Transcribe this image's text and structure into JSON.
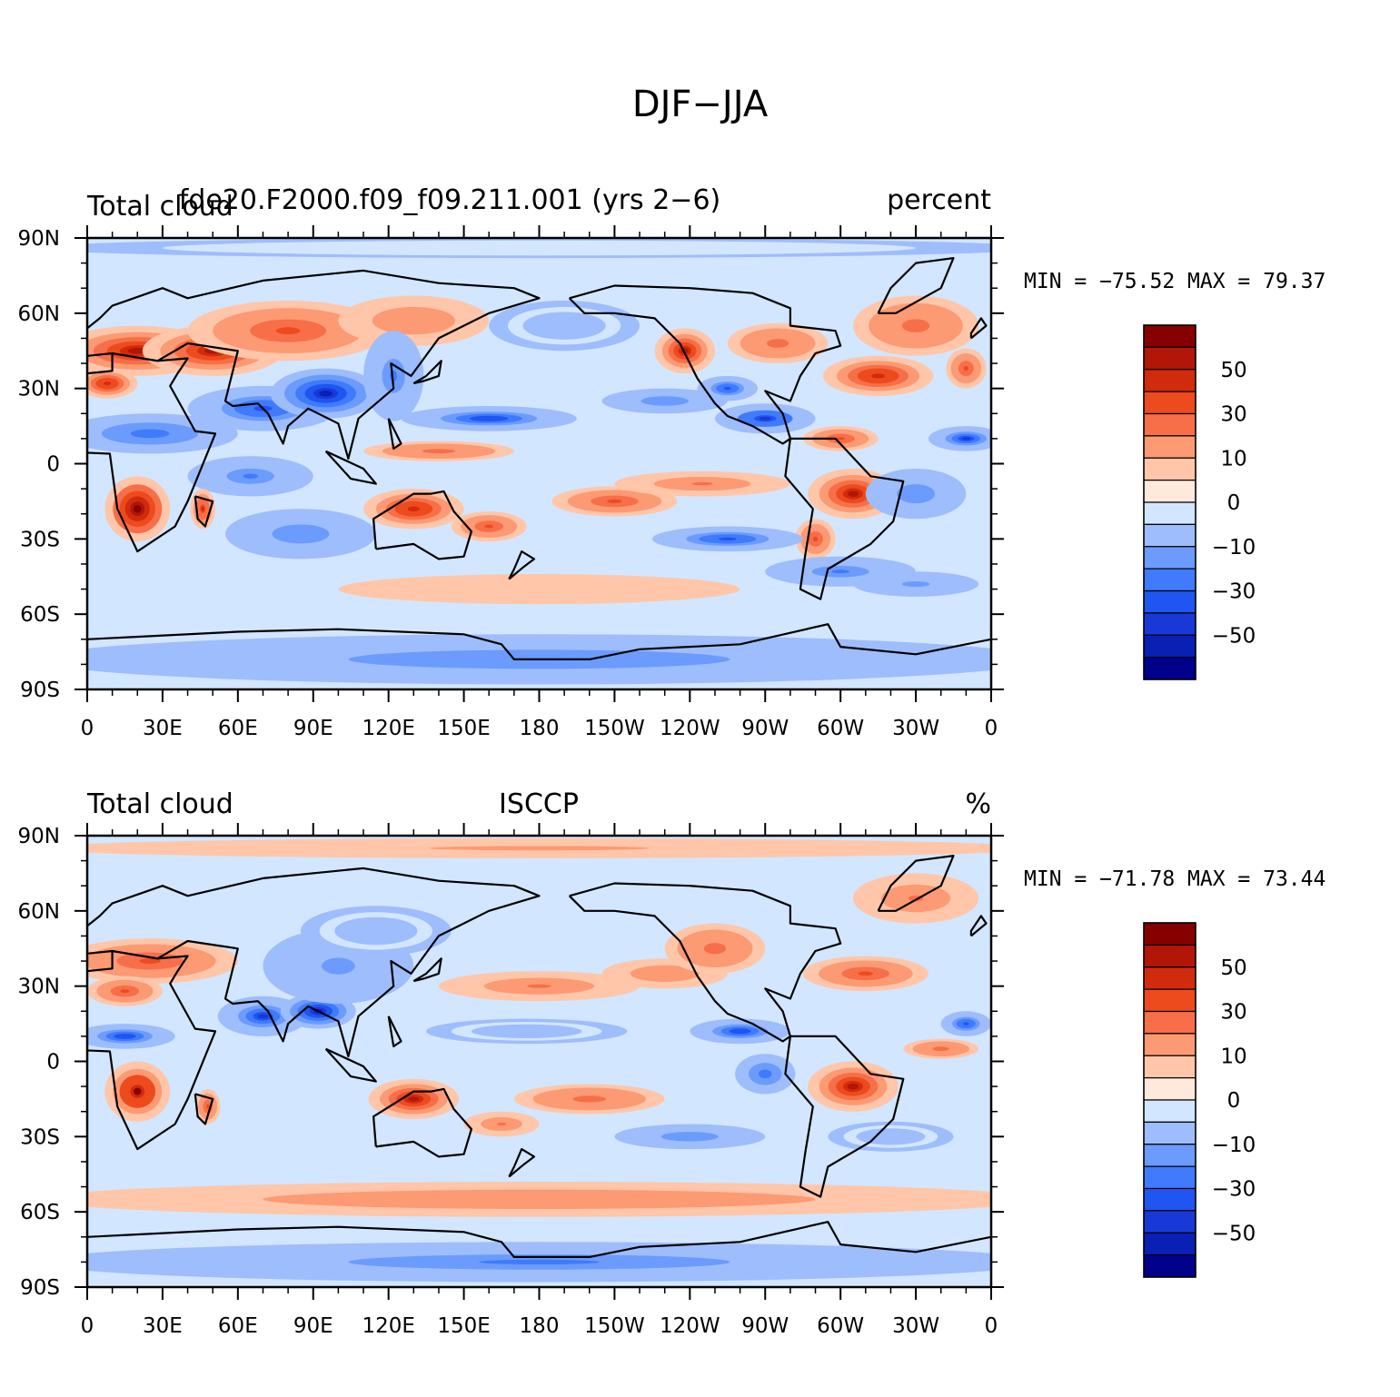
{
  "figure": {
    "title": "DJF−JJA"
  },
  "colors": {
    "levels": [
      "#00008b",
      "#0a1fb4",
      "#1839d8",
      "#1f55f0",
      "#3f7bfc",
      "#6b9bfc",
      "#9ebdfc",
      "#d2e6ff",
      "#ffe9dc",
      "#ffc6a9",
      "#fc9a74",
      "#f76f48",
      "#ed4b1e",
      "#d12b0d",
      "#b21606",
      "#870000"
    ],
    "coast": "#000000"
  },
  "chart_data": [
    {
      "type": "heatmap",
      "title_left": "Total cloud",
      "title_center": "fde20.F2000.f09_f09.211.001 (yrs 2−6)",
      "title_right": "percent",
      "stats": "MIN = −75.52 MAX =  79.37",
      "xticks": [
        "0",
        "30E",
        "60E",
        "90E",
        "120E",
        "150E",
        "180",
        "150W",
        "120W",
        "90W",
        "60W",
        "30W",
        "0"
      ],
      "yticks": [
        "90N",
        "60N",
        "30N",
        "0",
        "30S",
        "60S",
        "90S"
      ],
      "colorbar_labels": [
        "50",
        "30",
        "10",
        "0",
        "−10",
        "−30",
        "−50"
      ],
      "xlim": [
        0,
        360
      ],
      "ylim": [
        -90,
        90
      ],
      "blobs": [
        {
          "lon": 20,
          "lat": 45,
          "rx": 32,
          "ry": 10,
          "v": 55
        },
        {
          "lon": 50,
          "lat": 45,
          "rx": 28,
          "ry": 10,
          "v": 50
        },
        {
          "lon": 80,
          "lat": 53,
          "rx": 40,
          "ry": 12,
          "v": 30
        },
        {
          "lon": 130,
          "lat": 57,
          "rx": 30,
          "ry": 10,
          "v": 18
        },
        {
          "lon": 8,
          "lat": 32,
          "rx": 12,
          "ry": 6,
          "v": 45
        },
        {
          "lon": 25,
          "lat": 12,
          "rx": 35,
          "ry": 8,
          "v": -40
        },
        {
          "lon": 70,
          "lat": 22,
          "rx": 30,
          "ry": 9,
          "v": -45
        },
        {
          "lon": 95,
          "lat": 28,
          "rx": 22,
          "ry": 10,
          "v": -65
        },
        {
          "lon": 122,
          "lat": 35,
          "rx": 12,
          "ry": 18,
          "v": -35
        },
        {
          "lon": 65,
          "lat": -5,
          "rx": 25,
          "ry": 8,
          "v": -35
        },
        {
          "lon": 85,
          "lat": -28,
          "rx": 30,
          "ry": 10,
          "v": -30
        },
        {
          "lon": 20,
          "lat": -18,
          "rx": 13,
          "ry": 13,
          "v": 65
        },
        {
          "lon": 46,
          "lat": -18,
          "rx": 5,
          "ry": 8,
          "v": 40
        },
        {
          "lon": 130,
          "lat": -18,
          "rx": 20,
          "ry": 8,
          "v": 45
        },
        {
          "lon": 160,
          "lat": -25,
          "rx": 15,
          "ry": 6,
          "v": 30
        },
        {
          "lon": 140,
          "lat": 5,
          "rx": 30,
          "ry": 4,
          "v": 25
        },
        {
          "lon": 210,
          "lat": -15,
          "rx": 25,
          "ry": 6,
          "v": 35
        },
        {
          "lon": 245,
          "lat": -8,
          "rx": 35,
          "ry": 5,
          "v": 20
        },
        {
          "lon": 160,
          "lat": 18,
          "rx": 35,
          "ry": 5,
          "v": -50
        },
        {
          "lon": 230,
          "lat": 25,
          "rx": 25,
          "ry": 5,
          "v": -30
        },
        {
          "lon": 270,
          "lat": 18,
          "rx": 20,
          "ry": 6,
          "v": -60
        },
        {
          "lon": 255,
          "lat": 30,
          "rx": 12,
          "ry": 5,
          "v": -45
        },
        {
          "lon": 238,
          "lat": 45,
          "rx": 12,
          "ry": 9,
          "v": 55
        },
        {
          "lon": 275,
          "lat": 48,
          "rx": 20,
          "ry": 8,
          "v": 25
        },
        {
          "lon": 315,
          "lat": 35,
          "rx": 22,
          "ry": 8,
          "v": 45
        },
        {
          "lon": 300,
          "lat": 10,
          "rx": 15,
          "ry": 5,
          "v": 35
        },
        {
          "lon": 305,
          "lat": -12,
          "rx": 18,
          "ry": 10,
          "v": 55
        },
        {
          "lon": 290,
          "lat": -30,
          "rx": 8,
          "ry": 8,
          "v": 30
        },
        {
          "lon": 350,
          "lat": 10,
          "rx": 15,
          "ry": 5,
          "v": -55
        },
        {
          "lon": 330,
          "lat": -12,
          "rx": 20,
          "ry": 10,
          "v": -30
        },
        {
          "lon": 255,
          "lat": -30,
          "rx": 30,
          "ry": 5,
          "v": -45
        },
        {
          "lon": 300,
          "lat": -43,
          "rx": 30,
          "ry": 6,
          "v": -35
        },
        {
          "lon": 330,
          "lat": -48,
          "rx": 25,
          "ry": 5,
          "v": -25
        },
        {
          "lon": 330,
          "lat": 55,
          "rx": 25,
          "ry": 12,
          "v": 25
        },
        {
          "lon": 350,
          "lat": 38,
          "rx": 8,
          "ry": 8,
          "v": 35
        },
        {
          "lon": 190,
          "lat": 55,
          "rx": 30,
          "ry": 10,
          "v": -20
        },
        {
          "lon": 180,
          "lat": -50,
          "rx": 80,
          "ry": 6,
          "v": 8
        },
        {
          "lon": 180,
          "lat": -78,
          "rx": 200,
          "ry": 10,
          "v": -30
        },
        {
          "lon": 180,
          "lat": 86,
          "rx": 200,
          "ry": 4,
          "v": -5
        }
      ]
    },
    {
      "type": "heatmap",
      "title_left": "Total cloud",
      "title_center": "ISCCP",
      "title_right": "%",
      "stats": "MIN = −71.78 MAX =  73.44",
      "xticks": [
        "0",
        "30E",
        "60E",
        "90E",
        "120E",
        "150E",
        "180",
        "150W",
        "120W",
        "90W",
        "60W",
        "30W",
        "0"
      ],
      "yticks": [
        "90N",
        "60N",
        "30N",
        "0",
        "30S",
        "60S",
        "90S"
      ],
      "colorbar_labels": [
        "50",
        "30",
        "10",
        "0",
        "−10",
        "−30",
        "−50"
      ],
      "xlim": [
        0,
        360
      ],
      "ylim": [
        -90,
        90
      ],
      "blobs": [
        {
          "lon": 25,
          "lat": 40,
          "rx": 35,
          "ry": 9,
          "v": 35
        },
        {
          "lon": 15,
          "lat": 28,
          "rx": 15,
          "ry": 6,
          "v": 30
        },
        {
          "lon": 15,
          "lat": 10,
          "rx": 20,
          "ry": 5,
          "v": -50
        },
        {
          "lon": 70,
          "lat": 18,
          "rx": 18,
          "ry": 8,
          "v": -55
        },
        {
          "lon": 92,
          "lat": 20,
          "rx": 15,
          "ry": 7,
          "v": -65
        },
        {
          "lon": 100,
          "lat": 38,
          "rx": 30,
          "ry": 15,
          "v": -25
        },
        {
          "lon": 115,
          "lat": 52,
          "rx": 30,
          "ry": 10,
          "v": -15
        },
        {
          "lon": 20,
          "lat": -12,
          "rx": 13,
          "ry": 12,
          "v": 60
        },
        {
          "lon": 48,
          "lat": -18,
          "rx": 5,
          "ry": 7,
          "v": 30
        },
        {
          "lon": 130,
          "lat": -15,
          "rx": 18,
          "ry": 8,
          "v": 50
        },
        {
          "lon": 165,
          "lat": -25,
          "rx": 15,
          "ry": 5,
          "v": 20
        },
        {
          "lon": 200,
          "lat": -15,
          "rx": 30,
          "ry": 6,
          "v": 25
        },
        {
          "lon": 180,
          "lat": 30,
          "rx": 40,
          "ry": 6,
          "v": 20
        },
        {
          "lon": 230,
          "lat": 35,
          "rx": 25,
          "ry": 6,
          "v": 15
        },
        {
          "lon": 175,
          "lat": 12,
          "rx": 40,
          "ry": 5,
          "v": -15
        },
        {
          "lon": 260,
          "lat": 12,
          "rx": 20,
          "ry": 5,
          "v": -50
        },
        {
          "lon": 250,
          "lat": 45,
          "rx": 20,
          "ry": 10,
          "v": 25
        },
        {
          "lon": 310,
          "lat": 35,
          "rx": 25,
          "ry": 7,
          "v": 35
        },
        {
          "lon": 305,
          "lat": -10,
          "rx": 18,
          "ry": 10,
          "v": 55
        },
        {
          "lon": 270,
          "lat": -5,
          "rx": 12,
          "ry": 8,
          "v": -40
        },
        {
          "lon": 340,
          "lat": 5,
          "rx": 15,
          "ry": 4,
          "v": 25
        },
        {
          "lon": 350,
          "lat": 15,
          "rx": 10,
          "ry": 5,
          "v": -45
        },
        {
          "lon": 330,
          "lat": 65,
          "rx": 25,
          "ry": 10,
          "v": 20
        },
        {
          "lon": 180,
          "lat": 85,
          "rx": 200,
          "ry": 4,
          "v": 12
        },
        {
          "lon": 240,
          "lat": -30,
          "rx": 30,
          "ry": 5,
          "v": -30
        },
        {
          "lon": 320,
          "lat": -30,
          "rx": 25,
          "ry": 6,
          "v": -15
        },
        {
          "lon": 180,
          "lat": -55,
          "rx": 200,
          "ry": 7,
          "v": 15
        },
        {
          "lon": 180,
          "lat": -80,
          "rx": 200,
          "ry": 8,
          "v": -35
        }
      ]
    }
  ]
}
